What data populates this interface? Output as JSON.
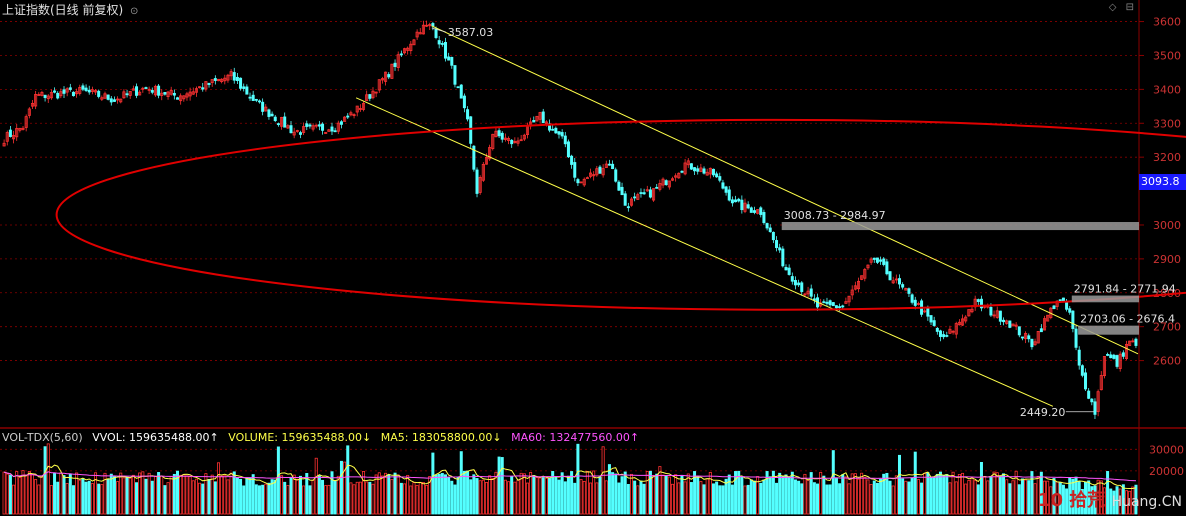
{
  "header": {
    "title": "上证指数(日线 前复权)",
    "dropdown_icon": "chevron-down-icon"
  },
  "top_icons": [
    "◇",
    "⊟"
  ],
  "price_tag": "3093.8",
  "volume_header": {
    "indicator": "VOL-TDX(5,60)",
    "vvol": "VVOL: 159635488.00↑",
    "volume": "VOLUME: 159635488.00↓",
    "ma5": "MA5: 183058800.00↓",
    "ma60": "MA60: 132477560.00↑"
  },
  "watermark": {
    "logo": "10",
    "site": "拾荒",
    "url": "Huang.CN"
  },
  "colors": {
    "up": "#ff3232",
    "down": "#54ffff",
    "channel": "#ffff4a",
    "ellipse": "#e00000",
    "ma5": "#ffff4a",
    "ma60": "#ff55ff",
    "zone": "#9a9a9a",
    "grid": "#8a0000"
  },
  "chart_data": {
    "type": "candlestick",
    "title": "上证指数(日线 前复权)",
    "price_axis": {
      "ticks": [
        3600,
        3500,
        3400,
        3300,
        3200,
        3000,
        2900,
        2800,
        2700,
        2600
      ],
      "ylim": [
        2410,
        3640
      ]
    },
    "volume_axis": {
      "ticks": [
        30000,
        20000
      ],
      "ylim": [
        0,
        32000
      ]
    },
    "anchors": [
      {
        "i": 0,
        "p": 3255
      },
      {
        "i": 6,
        "p": 3290
      },
      {
        "i": 10,
        "p": 3380
      },
      {
        "i": 25,
        "p": 3395
      },
      {
        "i": 35,
        "p": 3370
      },
      {
        "i": 45,
        "p": 3405
      },
      {
        "i": 55,
        "p": 3380
      },
      {
        "i": 72,
        "p": 3440
      },
      {
        "i": 80,
        "p": 3360
      },
      {
        "i": 92,
        "p": 3275
      },
      {
        "i": 105,
        "p": 3290
      },
      {
        "i": 112,
        "p": 3340
      },
      {
        "i": 122,
        "p": 3450
      },
      {
        "i": 132,
        "p": 3580
      },
      {
        "i": 136,
        "p": 3587
      },
      {
        "i": 142,
        "p": 3460
      },
      {
        "i": 147,
        "p": 3300
      },
      {
        "i": 150,
        "p": 3100
      },
      {
        "i": 155,
        "p": 3270
      },
      {
        "i": 162,
        "p": 3240
      },
      {
        "i": 170,
        "p": 3320
      },
      {
        "i": 178,
        "p": 3240
      },
      {
        "i": 182,
        "p": 3120
      },
      {
        "i": 192,
        "p": 3185
      },
      {
        "i": 197,
        "p": 3060
      },
      {
        "i": 206,
        "p": 3100
      },
      {
        "i": 216,
        "p": 3180
      },
      {
        "i": 225,
        "p": 3150
      },
      {
        "i": 232,
        "p": 3060
      },
      {
        "i": 240,
        "p": 3040
      },
      {
        "i": 248,
        "p": 2870
      },
      {
        "i": 258,
        "p": 2760
      },
      {
        "i": 266,
        "p": 2760
      },
      {
        "i": 276,
        "p": 2900
      },
      {
        "i": 282,
        "p": 2840
      },
      {
        "i": 290,
        "p": 2760
      },
      {
        "i": 298,
        "p": 2660
      },
      {
        "i": 308,
        "p": 2770
      },
      {
        "i": 318,
        "p": 2720
      },
      {
        "i": 326,
        "p": 2650
      },
      {
        "i": 334,
        "p": 2780
      },
      {
        "i": 338,
        "p": 2740
      },
      {
        "i": 341,
        "p": 2580
      },
      {
        "i": 346,
        "p": 2449
      },
      {
        "i": 349,
        "p": 2620
      },
      {
        "i": 353,
        "p": 2590
      },
      {
        "i": 357,
        "p": 2660
      },
      {
        "i": 359,
        "p": 2640
      }
    ],
    "candle_count": 360,
    "annotations": [
      {
        "text": "3587.03",
        "i": 136,
        "p": 3587,
        "kind": "high"
      },
      {
        "text": "2449.20",
        "i": 346,
        "p": 2449,
        "kind": "low"
      },
      {
        "text": "3008.73 - 2984.97",
        "p_top": 3008.73,
        "p_bot": 2984.97,
        "i_start": 247,
        "kind": "zone"
      },
      {
        "text": "2791.84 - 2771.94",
        "p_top": 2791.84,
        "p_bot": 2771.94,
        "i_start": 339,
        "kind": "zone"
      },
      {
        "text": "2703.06 - 2676.4",
        "p_top": 2703.06,
        "p_bot": 2676.4,
        "i_start": 341,
        "kind": "zone"
      }
    ],
    "channel": {
      "upper": [
        {
          "i": 136,
          "p": 3587
        },
        {
          "i": 360,
          "p": 2620
        }
      ],
      "lower": [
        {
          "i": 112,
          "p": 3375
        },
        {
          "i": 333,
          "p": 2465
        }
      ]
    },
    "ellipse": {
      "i_center": 245,
      "p_center": 3030,
      "i_radius": 228,
      "p_radius": 560
    }
  }
}
